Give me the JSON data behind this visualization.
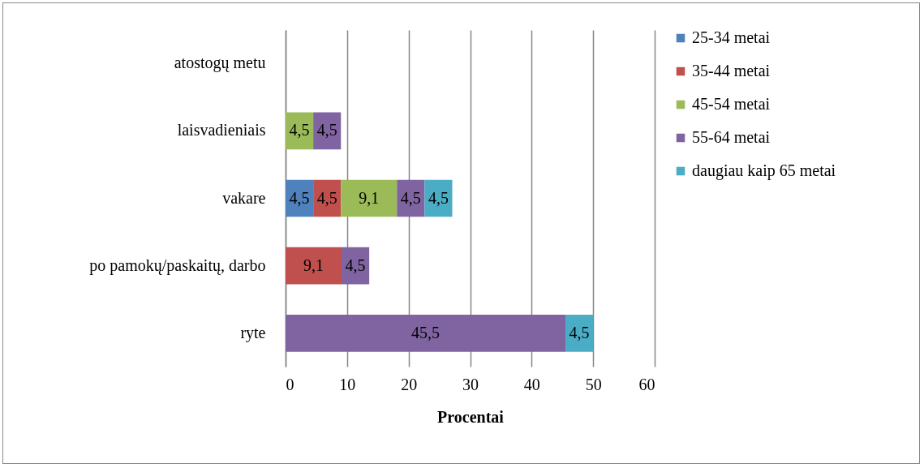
{
  "chart_data": {
    "type": "bar",
    "orientation": "horizontal",
    "stacked": true,
    "categories": [
      "atostogų metu",
      "laisvadieniais",
      "vakare",
      "po pamokų/paskaitų, darbo",
      "ryte"
    ],
    "series": [
      {
        "name": "25-34 metai",
        "color": "#4f81bd",
        "values": [
          null,
          null,
          4.5,
          null,
          null
        ],
        "value_labels": [
          null,
          null,
          "4,5",
          null,
          null
        ]
      },
      {
        "name": "35-44 metai",
        "color": "#c0504d",
        "values": [
          null,
          null,
          4.5,
          9.1,
          null
        ],
        "value_labels": [
          null,
          null,
          "4,5",
          "9,1",
          null
        ]
      },
      {
        "name": "45-54 metai",
        "color": "#9bbb59",
        "values": [
          null,
          4.5,
          9.1,
          null,
          null
        ],
        "value_labels": [
          null,
          "4,5",
          "9,1",
          null,
          null
        ]
      },
      {
        "name": "55-64 metai",
        "color": "#8064a2",
        "values": [
          null,
          4.5,
          4.5,
          4.5,
          45.5
        ],
        "value_labels": [
          null,
          "4,5",
          "4,5",
          "4,5",
          "45,5"
        ]
      },
      {
        "name": "daugiau kaip 65 metai",
        "color": "#4bacc6",
        "values": [
          null,
          null,
          4.5,
          null,
          4.5
        ],
        "value_labels": [
          null,
          null,
          "4,5",
          null,
          "4,5"
        ]
      }
    ],
    "xlabel": "Procentai",
    "xlim": [
      0,
      60
    ],
    "xticks": [
      0,
      10,
      20,
      30,
      40,
      50,
      60
    ],
    "grid": "x",
    "legend": "right"
  }
}
